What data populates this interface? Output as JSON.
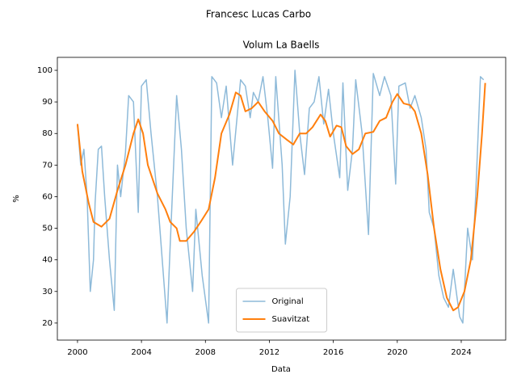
{
  "chart_data": {
    "type": "line",
    "suptitle": "Francesc Lucas Carbo",
    "title": "Volum La Baells",
    "x_label": "Data",
    "y_label": "%",
    "xlim": [
      1998.74,
      2026.78
    ],
    "ylim": [
      14.6,
      104.1
    ],
    "xticks": [
      2000,
      2004,
      2008,
      2012,
      2016,
      2020,
      2024
    ],
    "yticks": [
      20,
      30,
      40,
      50,
      60,
      70,
      80,
      90,
      100
    ],
    "legend": "lower center",
    "series": [
      {
        "name": "Original",
        "color": "#8ebad9",
        "width": 1.5,
        "x": [
          2000,
          2000.2,
          2000.4,
          2000.6,
          2000.8,
          2001.0,
          2001.1,
          2001.3,
          2001.5,
          2001.7,
          2002.0,
          2002.3,
          2002.5,
          2002.7,
          2003.0,
          2003.2,
          2003.5,
          2003.8,
          2004.0,
          2004.3,
          2004.6,
          2005.0,
          2005.3,
          2005.6,
          2005.8,
          2006.2,
          2006.5,
          2006.8,
          2007.2,
          2007.4,
          2007.8,
          2008.2,
          2008.4,
          2008.7,
          2009.0,
          2009.3,
          2009.7,
          2010.2,
          2010.5,
          2010.8,
          2011.0,
          2011.3,
          2011.6,
          2011.9,
          2012.2,
          2012.4,
          2012.8,
          2013.0,
          2013.3,
          2013.6,
          2013.9,
          2014.2,
          2014.5,
          2014.8,
          2015.1,
          2015.4,
          2015.7,
          2016.0,
          2016.4,
          2016.6,
          2016.9,
          2017.2,
          2017.4,
          2017.8,
          2018.2,
          2018.5,
          2018.9,
          2019.2,
          2019.6,
          2019.9,
          2020.1,
          2020.5,
          2020.8,
          2021.1,
          2021.5,
          2021.8,
          2022.0,
          2022.3,
          2022.6,
          2022.9,
          2023.2,
          2023.5,
          2023.9,
          2024.1,
          2024.4,
          2024.7,
          2024.9,
          2025.2,
          2025.4
        ],
        "values": [
          83,
          70,
          75,
          60,
          30,
          40,
          58,
          75,
          76,
          60,
          40,
          24,
          70,
          60,
          74,
          92,
          90,
          55,
          95,
          97,
          80,
          60,
          40,
          20,
          45,
          92,
          75,
          50,
          30,
          56,
          35,
          20,
          98,
          96,
          85,
          95,
          70,
          97,
          95,
          85,
          93,
          90,
          98,
          85,
          69,
          98,
          70,
          45,
          60,
          100,
          80,
          67,
          88,
          90,
          98,
          83,
          94,
          80,
          66,
          96,
          62,
          75,
          97,
          80,
          48,
          99,
          92,
          98,
          92,
          64,
          95,
          96,
          88,
          92,
          85,
          75,
          55,
          50,
          35,
          28,
          25,
          37,
          22,
          20,
          50,
          40,
          60,
          98,
          97
        ]
      },
      {
        "name": "Suavitzat",
        "color": "#ff7f0e",
        "width": 2,
        "x": [
          2000,
          2000.3,
          2000.7,
          2001.0,
          2001.5,
          2002.0,
          2002.5,
          2003.0,
          2003.5,
          2003.8,
          2004.1,
          2004.4,
          2005.0,
          2005.5,
          2005.8,
          2006.2,
          2006.4,
          2006.8,
          2007.3,
          2007.7,
          2008.2,
          2008.6,
          2009.0,
          2009.5,
          2009.9,
          2010.2,
          2010.5,
          2010.9,
          2011.3,
          2011.7,
          2012.2,
          2012.6,
          2013.1,
          2013.5,
          2013.9,
          2014.3,
          2014.7,
          2015.2,
          2015.5,
          2015.8,
          2016.2,
          2016.5,
          2016.8,
          2017.2,
          2017.6,
          2018.0,
          2018.5,
          2018.9,
          2019.3,
          2019.7,
          2020.0,
          2020.4,
          2020.8,
          2021.1,
          2021.5,
          2021.9,
          2022.3,
          2022.7,
          2023.1,
          2023.5,
          2023.8,
          2024.2,
          2024.6,
          2025.0,
          2025.3,
          2025.5
        ],
        "values": [
          83,
          68,
          58,
          52,
          50.5,
          53,
          62,
          70,
          80,
          84.5,
          80,
          70,
          61,
          56,
          52,
          50,
          46,
          46,
          49,
          52,
          56,
          66,
          80,
          86,
          93,
          92,
          87,
          88,
          90,
          87,
          84,
          80,
          78,
          76.5,
          80,
          80,
          82,
          86,
          84,
          79,
          82.5,
          82,
          76,
          73.5,
          75,
          80,
          80.5,
          84,
          85,
          90,
          92.5,
          89.5,
          89,
          87,
          80,
          67,
          50,
          37,
          28,
          24,
          25,
          30,
          40,
          60,
          80,
          96
        ]
      }
    ]
  }
}
